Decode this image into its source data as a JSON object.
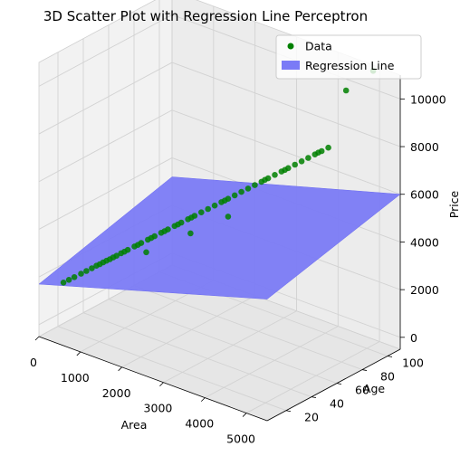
{
  "chart_data": {
    "type": "scatter",
    "projection": "3d",
    "title": "3D Scatter Plot with Regression Line Perceptron",
    "xlabel": "Area",
    "ylabel": "Age",
    "zlabel": "Price",
    "xlim": [
      0,
      5500
    ],
    "ylim": [
      5,
      110
    ],
    "zlim": [
      -500,
      11000
    ],
    "xticks": [
      0,
      1000,
      2000,
      3000,
      4000,
      5000
    ],
    "yticks": [
      20,
      40,
      60,
      80,
      100
    ],
    "zticks": [
      0,
      2000,
      4000,
      6000,
      8000,
      10000
    ],
    "xtick_labels": [
      "0",
      "1000",
      "2000",
      "3000",
      "4000",
      "5000"
    ],
    "ytick_labels": [
      "20",
      "40",
      "60",
      "80",
      "100"
    ],
    "ztick_labels": [
      "0",
      "2000",
      "4000",
      "6000",
      "8000",
      "10000"
    ],
    "grid": true,
    "legend": {
      "position": "top-right",
      "entries": [
        {
          "label": "Data",
          "kind": "marker",
          "color": "#008000"
        },
        {
          "label": "Regression Line",
          "kind": "patch",
          "color": "#7b7bf6"
        }
      ]
    },
    "series": [
      {
        "name": "Data",
        "color": "#008000",
        "points": [
          [
            500,
            8,
            2000
          ],
          [
            600,
            9,
            2150
          ],
          [
            700,
            10,
            2300
          ],
          [
            800,
            12,
            2450
          ],
          [
            900,
            13,
            2600
          ],
          [
            1000,
            14,
            2750
          ],
          [
            1050,
            16,
            2830
          ],
          [
            1100,
            17,
            2900
          ],
          [
            1150,
            18,
            2980
          ],
          [
            1200,
            19,
            3050
          ],
          [
            1250,
            20,
            3120
          ],
          [
            1300,
            21,
            3200
          ],
          [
            1350,
            22,
            3270
          ],
          [
            1400,
            24,
            3350
          ],
          [
            1450,
            25,
            3420
          ],
          [
            1500,
            26,
            3500
          ],
          [
            1600,
            28,
            3650
          ],
          [
            1650,
            29,
            3720
          ],
          [
            1700,
            30,
            3800
          ],
          [
            1800,
            32,
            3950
          ],
          [
            1850,
            33,
            4020
          ],
          [
            1900,
            34,
            4100
          ],
          [
            2000,
            36,
            4250
          ],
          [
            2050,
            37,
            4320
          ],
          [
            2100,
            38,
            4400
          ],
          [
            2200,
            40,
            4550
          ],
          [
            2250,
            41,
            4620
          ],
          [
            2300,
            42,
            4700
          ],
          [
            2400,
            44,
            4850
          ],
          [
            2450,
            45,
            4920
          ],
          [
            2500,
            46,
            5000
          ],
          [
            2600,
            48,
            5150
          ],
          [
            2700,
            50,
            5300
          ],
          [
            2800,
            52,
            5450
          ],
          [
            2900,
            54,
            5600
          ],
          [
            2950,
            55,
            5670
          ],
          [
            3000,
            56,
            5750
          ],
          [
            3100,
            58,
            5900
          ],
          [
            3200,
            60,
            6050
          ],
          [
            3300,
            62,
            6200
          ],
          [
            3400,
            64,
            6350
          ],
          [
            3500,
            66,
            6500
          ],
          [
            3550,
            67,
            6580
          ],
          [
            3600,
            68,
            6650
          ],
          [
            3700,
            70,
            6800
          ],
          [
            3800,
            72,
            6950
          ],
          [
            3850,
            73,
            7020
          ],
          [
            3900,
            74,
            7100
          ],
          [
            4000,
            76,
            7250
          ],
          [
            4100,
            78,
            7400
          ],
          [
            4200,
            80,
            7550
          ],
          [
            4300,
            82,
            7700
          ],
          [
            4350,
            83,
            7780
          ],
          [
            4400,
            84,
            7850
          ],
          [
            4500,
            86,
            8000
          ],
          [
            2400,
            46,
            4200
          ],
          [
            3000,
            56,
            5000
          ],
          [
            1700,
            34,
            3300
          ],
          [
            4500,
            100,
            10000
          ],
          [
            5000,
            105,
            11000
          ]
        ]
      }
    ],
    "regression_plane": {
      "name": "Regression Line",
      "color": "#7b7bf6",
      "corners": [
        [
          0,
          5,
          1700
        ],
        [
          5500,
          5,
          4600
        ],
        [
          5500,
          110,
          6000
        ],
        [
          0,
          110,
          3200
        ]
      ]
    }
  }
}
